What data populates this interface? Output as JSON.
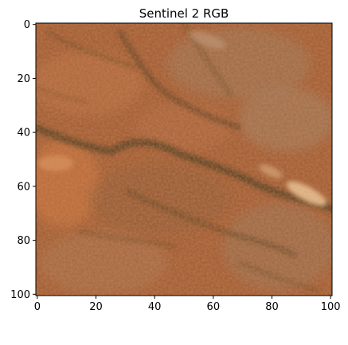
{
  "figure": {
    "title": "Sentinel 2 RGB",
    "x_ticks": [
      "0",
      "20",
      "40",
      "60",
      "80",
      "100"
    ],
    "y_ticks": [
      "0",
      "20",
      "40",
      "60",
      "80",
      "100"
    ],
    "x_range": [
      0,
      101
    ],
    "y_range": [
      0,
      101
    ],
    "y_inverted": true
  },
  "palette": {
    "base": "#a4582e",
    "dark_channel": "#4e3518",
    "bright_highlight": "#f0c897",
    "orange": "#c66b36",
    "grey_tan": "#9a7556"
  }
}
